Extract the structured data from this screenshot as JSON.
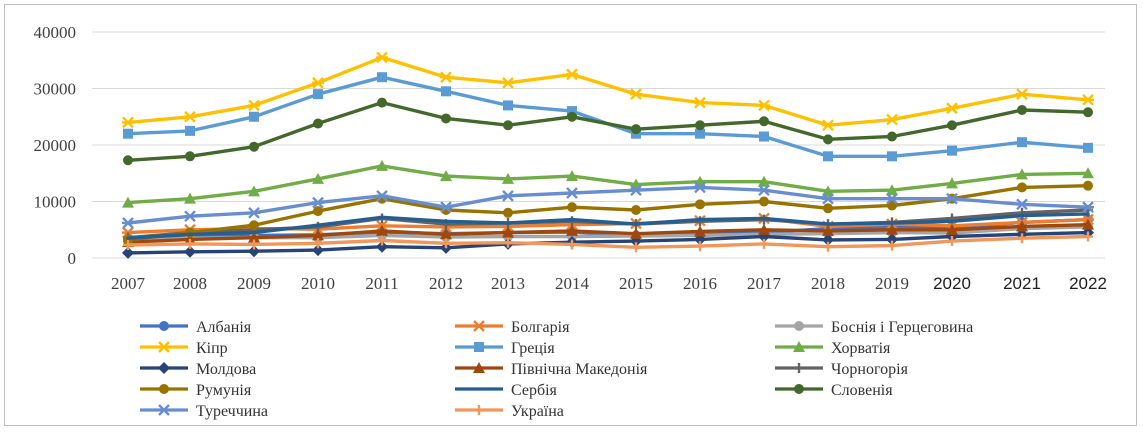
{
  "chart_data": {
    "type": "line",
    "title": "",
    "xlabel": "",
    "ylabel": "",
    "ylim": [
      0,
      40000
    ],
    "yticks": [
      "0",
      "10000",
      "20000",
      "30000",
      "40000"
    ],
    "x": [
      "2007",
      "2008",
      "2009",
      "2010",
      "2011",
      "2012",
      "2013",
      "2014",
      "2015",
      "2016",
      "2017",
      "2018",
      "2019",
      "2020",
      "2021",
      "2022"
    ],
    "grid": true,
    "legend_position": "bottom",
    "series": [
      {
        "name": "Албанія",
        "color": "#4472c4",
        "marker": "circle",
        "values": [
          3400,
          3800,
          4000,
          4100,
          4600,
          4300,
          4500,
          4600,
          4000,
          4200,
          4500,
          5200,
          5400,
          5300,
          6300,
          6800
        ]
      },
      {
        "name": "Болгарія",
        "color": "#ed7d31",
        "marker": "star",
        "values": [
          4500,
          5000,
          5200,
          5100,
          5700,
          5500,
          5600,
          5900,
          6100,
          6600,
          7000,
          5600,
          6000,
          5700,
          6300,
          6800
        ]
      },
      {
        "name": "Боснія і Герцеговина",
        "color": "#a5a5a5",
        "marker": "circle",
        "values": [
          3000,
          3500,
          3600,
          3600,
          4000,
          3700,
          3800,
          3800,
          3900,
          4000,
          4200,
          4300,
          4500,
          4400,
          5200,
          5500
        ]
      },
      {
        "name": "Кіпр",
        "color": "#ffc000",
        "marker": "star",
        "values": [
          24000,
          25000,
          27000,
          31000,
          35500,
          32000,
          31000,
          32500,
          29000,
          27500,
          27000,
          23500,
          24500,
          26500,
          29000,
          28000
        ]
      },
      {
        "name": "Греція",
        "color": "#5b9bd5",
        "marker": "square",
        "values": [
          22000,
          22500,
          25000,
          29000,
          32000,
          29500,
          27000,
          26000,
          22000,
          22000,
          21500,
          18000,
          18000,
          19000,
          20500,
          19500
        ]
      },
      {
        "name": "Хорватія",
        "color": "#70ad47",
        "marker": "triangle",
        "values": [
          9800,
          10500,
          11800,
          14000,
          16300,
          14500,
          14000,
          14500,
          13000,
          13500,
          13500,
          11800,
          12000,
          13200,
          14800,
          15000
        ]
      },
      {
        "name": "Молдова",
        "color": "#264478",
        "marker": "diamond",
        "values": [
          900,
          1100,
          1200,
          1400,
          2000,
          1800,
          2500,
          2800,
          3000,
          3300,
          3800,
          3200,
          3300,
          3800,
          4200,
          4500
        ]
      },
      {
        "name": "Північна Македонія",
        "color": "#9e480e",
        "marker": "triangle",
        "values": [
          2800,
          3300,
          3600,
          4000,
          4800,
          4200,
          4500,
          4800,
          4300,
          4700,
          5000,
          4800,
          5000,
          5000,
          5600,
          5900
        ]
      },
      {
        "name": "Чорногорія",
        "color": "#636363",
        "marker": "plus",
        "values": [
          3600,
          4500,
          5000,
          5500,
          7000,
          6000,
          6200,
          6500,
          6000,
          6500,
          6800,
          6000,
          6300,
          7000,
          8000,
          8500
        ]
      },
      {
        "name": "Румунія",
        "color": "#997300",
        "marker": "circle",
        "values": [
          3200,
          4500,
          5800,
          8300,
          10500,
          8500,
          8000,
          9000,
          8500,
          9500,
          10000,
          8800,
          9300,
          10500,
          12500,
          12800
        ]
      },
      {
        "name": "Сербія",
        "color": "#255e91",
        "marker": "line",
        "values": [
          3500,
          4200,
          4500,
          5800,
          7200,
          6500,
          6200,
          6800,
          6000,
          6800,
          7000,
          6000,
          6200,
          6500,
          7500,
          7800
        ]
      },
      {
        "name": "Словенія",
        "color": "#43682b",
        "marker": "circle",
        "values": [
          17300,
          18000,
          19700,
          23800,
          27500,
          24700,
          23500,
          25000,
          22800,
          23500,
          24200,
          21000,
          21500,
          23500,
          26200,
          25800
        ]
      },
      {
        "name": "Туреччина",
        "color": "#698ed0",
        "marker": "star",
        "values": [
          6200,
          7400,
          8000,
          9800,
          11000,
          9000,
          11000,
          11500,
          12000,
          12500,
          12000,
          10500,
          10500,
          10500,
          9500,
          9000
        ]
      },
      {
        "name": "Україна",
        "color": "#f1975a",
        "marker": "plus",
        "values": [
          2300,
          2500,
          2400,
          2600,
          3100,
          2600,
          2700,
          2400,
          1900,
          2100,
          2500,
          2000,
          2200,
          3000,
          3500,
          3800
        ]
      }
    ]
  }
}
